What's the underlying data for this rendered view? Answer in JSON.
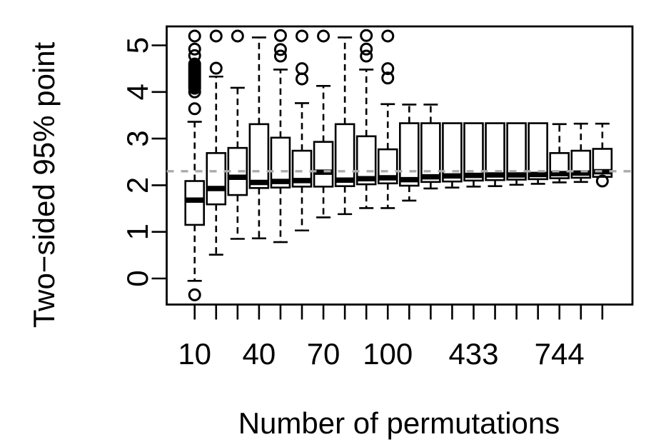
{
  "chart_data": {
    "type": "boxplot",
    "title": "",
    "xlabel": "Number of permutations",
    "ylabel": "Two−sided 95% point",
    "ylim": [
      -0.55,
      5.45
    ],
    "grid": false,
    "legend": null,
    "y_ticks": [
      0,
      1,
      2,
      3,
      4,
      5
    ],
    "n_boxes": 20,
    "x_ticks_shown": [
      {
        "pos": 1,
        "label": "10"
      },
      {
        "pos": 4,
        "label": "40"
      },
      {
        "pos": 7,
        "label": "70"
      },
      {
        "pos": 10,
        "label": "100"
      },
      {
        "pos": 14,
        "label": "433"
      },
      {
        "pos": 18,
        "label": "744"
      }
    ],
    "reference_line": {
      "y": 2.3,
      "style": "dashed",
      "color": "#ababab"
    },
    "colors": {
      "box_stroke": "#000000",
      "box_fill": "#ffffff",
      "median": "#000000",
      "whisker": "#000000"
    },
    "boxes": [
      {
        "pos": 1,
        "label": "10",
        "whisker_low": -0.05,
        "q1": 1.15,
        "median": 1.68,
        "q3": 2.09,
        "whisker_high": 3.36,
        "outliers": [
          -0.35,
          3.64,
          4.0,
          4.08,
          4.12,
          4.16,
          4.2,
          4.24,
          4.28,
          4.32,
          4.36,
          4.4,
          4.44,
          4.48,
          4.52,
          4.56,
          4.6,
          4.78,
          4.92,
          5.2
        ]
      },
      {
        "pos": 2,
        "label": "",
        "whisker_low": 0.51,
        "q1": 1.59,
        "median": 1.93,
        "q3": 2.69,
        "whisker_high": 4.33,
        "outliers": [
          4.51,
          5.2
        ]
      },
      {
        "pos": 3,
        "label": "",
        "whisker_low": 0.85,
        "q1": 1.79,
        "median": 2.17,
        "q3": 2.8,
        "whisker_high": 4.09,
        "outliers": [
          5.2
        ]
      },
      {
        "pos": 4,
        "label": "40",
        "whisker_low": 0.86,
        "q1": 1.94,
        "median": 2.06,
        "q3": 3.31,
        "whisker_high": 5.17,
        "outliers": []
      },
      {
        "pos": 5,
        "label": "",
        "whisker_low": 0.78,
        "q1": 1.95,
        "median": 2.08,
        "q3": 3.02,
        "whisker_high": 4.48,
        "outliers": [
          4.77,
          4.91,
          5.21
        ]
      },
      {
        "pos": 6,
        "label": "",
        "whisker_low": 1.03,
        "q1": 1.97,
        "median": 2.1,
        "q3": 2.74,
        "whisker_high": 3.76,
        "outliers": [
          4.28,
          4.5,
          5.2
        ]
      },
      {
        "pos": 7,
        "label": "70",
        "whisker_low": 1.31,
        "q1": 1.97,
        "median": 2.28,
        "q3": 2.93,
        "whisker_high": 4.13,
        "outliers": [
          5.2
        ]
      },
      {
        "pos": 8,
        "label": "",
        "whisker_low": 1.38,
        "q1": 1.98,
        "median": 2.11,
        "q3": 3.31,
        "whisker_high": 5.17,
        "outliers": []
      },
      {
        "pos": 9,
        "label": "",
        "whisker_low": 1.51,
        "q1": 2.02,
        "median": 2.14,
        "q3": 3.05,
        "whisker_high": 4.48,
        "outliers": [
          4.77,
          4.92,
          5.21
        ]
      },
      {
        "pos": 10,
        "label": "100",
        "whisker_low": 1.51,
        "q1": 2.04,
        "median": 2.16,
        "q3": 2.77,
        "whisker_high": 3.74,
        "outliers": [
          4.3,
          4.5,
          5.2
        ]
      },
      {
        "pos": 11,
        "label": "",
        "whisker_low": 1.67,
        "q1": 1.99,
        "median": 2.12,
        "q3": 3.33,
        "whisker_high": 3.73,
        "outliers": []
      },
      {
        "pos": 12,
        "label": "",
        "whisker_low": 1.93,
        "q1": 2.07,
        "median": 2.18,
        "q3": 3.33,
        "whisker_high": 3.73,
        "outliers": []
      },
      {
        "pos": 13,
        "label": "",
        "whisker_low": 1.95,
        "q1": 2.08,
        "median": 2.2,
        "q3": 3.33,
        "whisker_high": 3.33,
        "outliers": []
      },
      {
        "pos": 14,
        "label": "433",
        "whisker_low": 1.97,
        "q1": 2.1,
        "median": 2.21,
        "q3": 3.33,
        "whisker_high": 3.33,
        "outliers": []
      },
      {
        "pos": 15,
        "label": "",
        "whisker_low": 1.98,
        "q1": 2.11,
        "median": 2.22,
        "q3": 3.33,
        "whisker_high": 3.33,
        "outliers": []
      },
      {
        "pos": 16,
        "label": "",
        "whisker_low": 2.01,
        "q1": 2.12,
        "median": 2.22,
        "q3": 3.33,
        "whisker_high": 3.33,
        "outliers": []
      },
      {
        "pos": 17,
        "label": "",
        "whisker_low": 2.03,
        "q1": 2.13,
        "median": 2.23,
        "q3": 3.33,
        "whisker_high": 3.33,
        "outliers": []
      },
      {
        "pos": 18,
        "label": "744",
        "whisker_low": 2.06,
        "q1": 2.15,
        "median": 2.25,
        "q3": 2.69,
        "whisker_high": 3.31,
        "outliers": []
      },
      {
        "pos": 19,
        "label": "",
        "whisker_low": 2.07,
        "q1": 2.16,
        "median": 2.26,
        "q3": 2.74,
        "whisker_high": 3.32,
        "outliers": []
      },
      {
        "pos": 20,
        "label": "",
        "whisker_low": 2.18,
        "q1": 2.18,
        "median": 2.29,
        "q3": 2.78,
        "whisker_high": 3.32,
        "outliers": [
          2.09
        ]
      }
    ]
  }
}
